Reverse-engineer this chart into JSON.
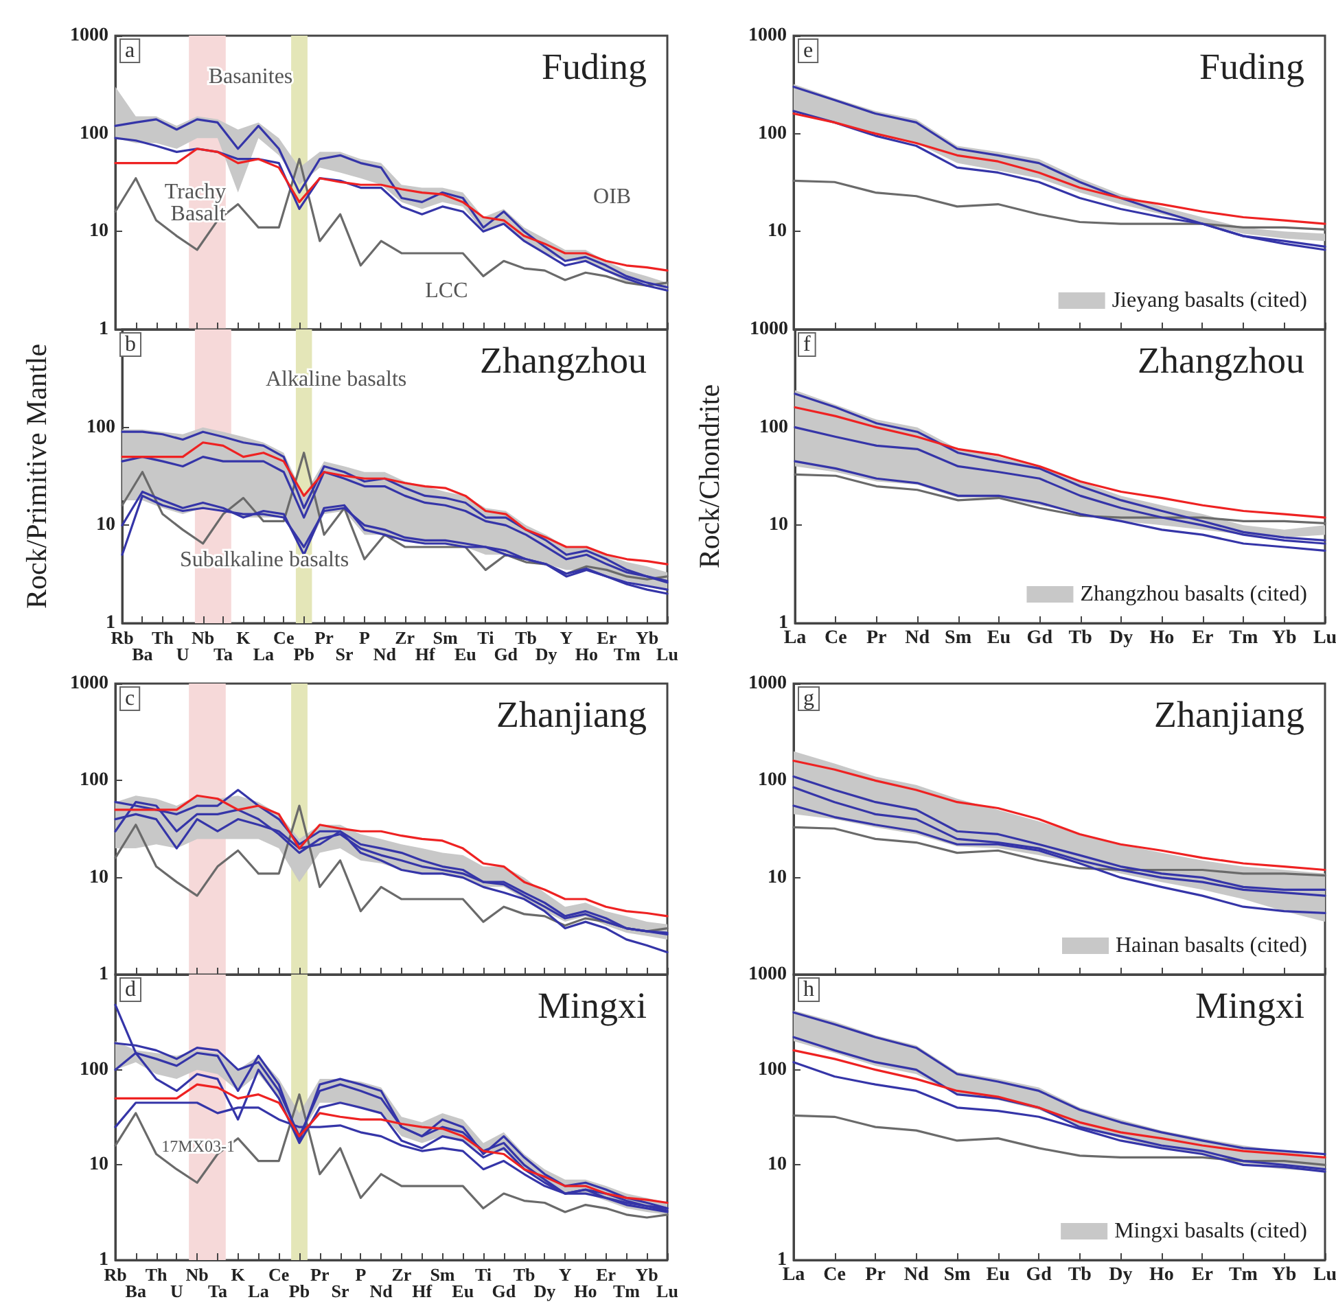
{
  "chart_data": [
    {
      "type": "line",
      "title": "Fuding",
      "annotations": [
        "a",
        "Basanites",
        "Trachy Basalt",
        "OIB",
        "LCC"
      ],
      "categories": [
        "Rb",
        "Ba",
        "Th",
        "U",
        "Nb",
        "Ta",
        "K",
        "La",
        "Ce",
        "Pb",
        "Pr",
        "Sr",
        "P",
        "Nd",
        "Zr",
        "Hf",
        "Sm",
        "Eu",
        "Ti",
        "Gd",
        "Tb",
        "Dy",
        "Y",
        "Ho",
        "Er",
        "Tm",
        "Yb",
        "Lu"
      ],
      "log": true,
      "ylim": [
        1,
        1000
      ],
      "yticks": [
        1,
        10,
        100,
        1000
      ],
      "tick_labels": "y",
      "marker": "none",
      "bands": [
        {
          "axis": "x",
          "from": "Nb",
          "to": "Ta",
          "color": "#f6d9d9"
        },
        {
          "axis": "x",
          "from": "Pb",
          "to": "Pb",
          "color": "#e4e6b8"
        }
      ],
      "series": [
        {
          "color": "#c8c8c8",
          "values": [
            null,
            null,
            null,
            null,
            null,
            null,
            null,
            null,
            null,
            null,
            null,
            null,
            null,
            null,
            null,
            null,
            null,
            null,
            null,
            null,
            null,
            null,
            null,
            null,
            null,
            null,
            null,
            null
          ],
          "lower": [
            90,
            80,
            80,
            70,
            90,
            90,
            25,
            90,
            60,
            30,
            45,
            40,
            35,
            30,
            20,
            17,
            20,
            18,
            10,
            12,
            8,
            6,
            5,
            5,
            4,
            3,
            3,
            2.5
          ],
          "upper": [
            300,
            150,
            150,
            120,
            150,
            140,
            110,
            130,
            90,
            45,
            65,
            65,
            55,
            50,
            30,
            28,
            28,
            25,
            14,
            17,
            11,
            8.5,
            6.5,
            6.5,
            5,
            4,
            3.5,
            3
          ]
        },
        {
          "color": "#6a6a6a",
          "values": [
            16,
            35,
            13,
            9,
            6.5,
            13,
            19,
            11,
            11,
            55,
            8,
            15,
            4.5,
            8,
            6,
            6,
            6,
            6,
            3.5,
            5,
            4.2,
            4,
            3.2,
            3.8,
            3.5,
            3,
            2.8,
            3
          ]
        },
        {
          "color": "#3535a8",
          "values": [
            120,
            130,
            140,
            110,
            140,
            130,
            70,
            120,
            70,
            25,
            55,
            60,
            50,
            45,
            22,
            20,
            25,
            22,
            11,
            16,
            10,
            7,
            5,
            5.5,
            4.5,
            3.5,
            3,
            2.7
          ]
        },
        {
          "color": "#3535a8",
          "values": [
            90,
            85,
            75,
            65,
            70,
            65,
            55,
            55,
            50,
            17,
            35,
            33,
            28,
            28,
            18,
            15,
            18,
            16,
            10,
            12,
            8,
            6,
            4.5,
            5,
            4,
            3.3,
            2.8,
            2.5
          ]
        },
        {
          "color": "#ee2222",
          "values": [
            50,
            50,
            50,
            50,
            70,
            65,
            50,
            55,
            45,
            20,
            35,
            32,
            30,
            30,
            27,
            25,
            24,
            20,
            14,
            13,
            9,
            7.5,
            6,
            6,
            5,
            4.5,
            4.3,
            4
          ]
        }
      ]
    },
    {
      "type": "line",
      "title": "Zhangzhou",
      "ylabel": "Rock/Primitive Mantle",
      "annotations": [
        "b",
        "Alkaline basalts",
        "Subalkaline basalts"
      ],
      "categories": [
        "Rb",
        "Ba",
        "Th",
        "U",
        "Nb",
        "Ta",
        "K",
        "La",
        "Ce",
        "Pb",
        "Pr",
        "Sr",
        "P",
        "Nd",
        "Zr",
        "Hf",
        "Sm",
        "Eu",
        "Ti",
        "Gd",
        "Tb",
        "Dy",
        "Y",
        "Ho",
        "Er",
        "Tm",
        "Yb",
        "Lu"
      ],
      "log": true,
      "ylim": [
        1,
        1000
      ],
      "yticks": [
        1,
        10,
        100
      ],
      "marker": "none",
      "bands": [
        {
          "axis": "x",
          "from": "Nb",
          "to": "Ta",
          "color": "#f6d9d9"
        },
        {
          "axis": "x",
          "from": "Pb",
          "to": "Pb",
          "color": "#e4e6b8"
        }
      ],
      "series": [
        {
          "color": "#c8c8c8",
          "values": [
            null,
            null,
            null,
            null,
            null,
            null,
            null,
            null,
            null,
            null,
            null,
            null,
            null,
            null,
            null,
            null,
            null,
            null,
            null,
            null,
            null,
            null,
            null,
            null,
            null,
            null,
            null,
            null
          ],
          "lower": [
            18,
            18,
            15,
            13,
            15,
            14,
            12,
            12,
            12,
            5,
            13,
            14,
            8,
            8,
            7,
            6.5,
            6.5,
            6,
            5,
            5,
            4.5,
            4,
            3.5,
            3.5,
            3,
            2.7,
            2.4,
            2.2
          ],
          "upper": [
            95,
            95,
            90,
            85,
            100,
            90,
            80,
            70,
            55,
            20,
            45,
            40,
            35,
            35,
            28,
            25,
            22,
            20,
            15,
            14,
            10,
            8,
            6,
            6,
            5,
            4.2,
            3.8,
            3.3
          ]
        },
        {
          "color": "#6a6a6a",
          "values": [
            16,
            35,
            13,
            9,
            6.5,
            13,
            19,
            11,
            11,
            55,
            8,
            15,
            4.5,
            8,
            6,
            6,
            6,
            6,
            3.5,
            5,
            4.2,
            4,
            3.2,
            3.8,
            3.5,
            3,
            2.8,
            3
          ]
        },
        {
          "color": "#3535a8",
          "values": [
            90,
            90,
            85,
            75,
            90,
            80,
            70,
            65,
            50,
            15,
            40,
            35,
            28,
            30,
            24,
            20,
            19,
            17,
            12,
            12,
            9,
            7,
            5,
            5.5,
            4.5,
            3.5,
            3,
            2.7
          ]
        },
        {
          "color": "#3535a8",
          "values": [
            45,
            50,
            45,
            40,
            50,
            45,
            45,
            45,
            35,
            12,
            35,
            30,
            25,
            25,
            20,
            17,
            16,
            14,
            11,
            10,
            8,
            6,
            4.5,
            5,
            4,
            3.3,
            3,
            2.6
          ]
        },
        {
          "color": "#3535a8",
          "values": [
            10,
            22,
            18,
            15,
            17,
            15,
            12,
            14,
            13,
            5,
            15,
            16,
            9,
            8,
            7,
            6.5,
            6.5,
            6,
            6,
            5.5,
            4.5,
            4,
            3,
            3.5,
            3,
            2.5,
            2.2,
            2
          ]
        },
        {
          "color": "#3535a8",
          "values": [
            5,
            20,
            16,
            14,
            15,
            14,
            13,
            13,
            12,
            6,
            14,
            15,
            10,
            9,
            7.5,
            7,
            7,
            6.5,
            6,
            5,
            4.5,
            4,
            3.2,
            3.6,
            3,
            2.6,
            2.4,
            2.2
          ]
        },
        {
          "color": "#ee2222",
          "values": [
            50,
            50,
            50,
            50,
            70,
            65,
            50,
            55,
            45,
            20,
            35,
            32,
            30,
            30,
            27,
            25,
            24,
            20,
            14,
            13,
            9,
            7.5,
            6,
            6,
            5,
            4.5,
            4.3,
            4
          ]
        }
      ]
    },
    {
      "type": "line",
      "title": "Zhanjiang",
      "annotations": [
        "c"
      ],
      "categories": [
        "Rb",
        "Ba",
        "Th",
        "U",
        "Nb",
        "Ta",
        "K",
        "La",
        "Ce",
        "Pb",
        "Pr",
        "Sr",
        "P",
        "Nd",
        "Zr",
        "Hf",
        "Sm",
        "Eu",
        "Ti",
        "Gd",
        "Tb",
        "Dy",
        "Y",
        "Ho",
        "Er",
        "Tm",
        "Yb",
        "Lu"
      ],
      "log": true,
      "ylim": [
        1,
        1000
      ],
      "yticks": [
        1,
        10,
        100,
        1000
      ],
      "tick_labels": "y",
      "marker": "none",
      "bands": [
        {
          "axis": "x",
          "from": "Nb",
          "to": "Ta",
          "color": "#f6d9d9"
        },
        {
          "axis": "x",
          "from": "Pb",
          "to": "Pb",
          "color": "#e4e6b8"
        }
      ],
      "series": [
        {
          "color": "#c8c8c8",
          "values": [
            null,
            null,
            null,
            null,
            null,
            null,
            null,
            null,
            null,
            null,
            null,
            null,
            null,
            null,
            null,
            null,
            null,
            null,
            null,
            null,
            null,
            null,
            null,
            null,
            null,
            null,
            null,
            null
          ],
          "lower": [
            20,
            20,
            22,
            20,
            25,
            25,
            25,
            25,
            20,
            9,
            18,
            20,
            15,
            14,
            12,
            11,
            11,
            10,
            8,
            8,
            6,
            4.5,
            3.5,
            4,
            3.2,
            2.7,
            2.5,
            2.3
          ],
          "upper": [
            60,
            70,
            65,
            55,
            70,
            65,
            70,
            60,
            45,
            25,
            35,
            35,
            28,
            25,
            22,
            20,
            18,
            17,
            13,
            13,
            10,
            7,
            5,
            5.5,
            4.5,
            4,
            3.5,
            3.3
          ]
        },
        {
          "color": "#6a6a6a",
          "values": [
            16,
            35,
            13,
            9,
            6.5,
            13,
            19,
            11,
            11,
            55,
            8,
            15,
            4.5,
            8,
            6,
            6,
            6,
            6,
            3.5,
            5,
            4.2,
            4,
            3.2,
            3.8,
            3.5,
            3,
            2.8,
            3
          ]
        },
        {
          "color": "#3535a8",
          "values": [
            60,
            55,
            50,
            45,
            55,
            55,
            80,
            55,
            40,
            22,
            30,
            30,
            22,
            20,
            18,
            15,
            13,
            12,
            9,
            9,
            7,
            5.5,
            4,
            4.5,
            3.8,
            3,
            2.8,
            2.7
          ]
        },
        {
          "color": "#3535a8",
          "values": [
            40,
            45,
            40,
            20,
            40,
            30,
            40,
            35,
            30,
            20,
            22,
            30,
            18,
            15,
            12,
            11,
            11,
            10,
            8,
            7,
            6,
            4.5,
            3,
            3.5,
            3,
            2.3,
            2,
            1.7
          ]
        },
        {
          "color": "#3535a8",
          "values": [
            30,
            60,
            55,
            30,
            45,
            45,
            50,
            40,
            28,
            18,
            25,
            28,
            20,
            17,
            15,
            13,
            12,
            11,
            9,
            8.5,
            6.5,
            5,
            3.8,
            4.2,
            3.5,
            3,
            2.8,
            2.6
          ]
        },
        {
          "color": "#ee2222",
          "values": [
            50,
            50,
            50,
            50,
            70,
            65,
            50,
            55,
            45,
            20,
            35,
            32,
            30,
            30,
            27,
            25,
            24,
            20,
            14,
            13,
            9,
            7.5,
            6,
            6,
            5,
            4.5,
            4.3,
            4
          ]
        }
      ]
    },
    {
      "type": "line",
      "title": "Mingxi",
      "annotations": [
        "d",
        "17MX03-1"
      ],
      "categories": [
        "Rb",
        "Ba",
        "Th",
        "U",
        "Nb",
        "Ta",
        "K",
        "La",
        "Ce",
        "Pb",
        "Pr",
        "Sr",
        "P",
        "Nd",
        "Zr",
        "Hf",
        "Sm",
        "Eu",
        "Ti",
        "Gd",
        "Tb",
        "Dy",
        "Y",
        "Ho",
        "Er",
        "Tm",
        "Yb",
        "Lu"
      ],
      "log": true,
      "ylim": [
        1,
        1000
      ],
      "yticks": [
        1,
        10,
        100
      ],
      "marker": "none",
      "bands": [
        {
          "axis": "x",
          "from": "Nb",
          "to": "Ta",
          "color": "#f6d9d9"
        },
        {
          "axis": "x",
          "from": "Pb",
          "to": "Pb",
          "color": "#e4e6b8"
        }
      ],
      "series": [
        {
          "color": "#c8c8c8",
          "values": [
            null,
            null,
            null,
            null,
            null,
            null,
            null,
            null,
            null,
            null,
            null,
            null,
            null,
            null,
            null,
            null,
            null,
            null,
            null,
            null,
            null,
            null,
            null,
            null,
            null,
            null,
            null,
            null
          ],
          "lower": [
            100,
            120,
            90,
            80,
            100,
            90,
            60,
            90,
            50,
            20,
            45,
            45,
            40,
            35,
            20,
            17,
            20,
            18,
            13,
            14,
            9,
            6.5,
            5,
            5,
            4.2,
            3.5,
            3.2,
            3
          ],
          "upper": [
            200,
            160,
            150,
            140,
            160,
            150,
            100,
            140,
            80,
            35,
            80,
            80,
            75,
            65,
            32,
            28,
            35,
            30,
            17,
            22,
            13,
            9,
            7,
            7,
            6,
            5,
            4.5,
            4
          ]
        },
        {
          "color": "#6a6a6a",
          "values": [
            16,
            35,
            13,
            9,
            6.5,
            13,
            19,
            11,
            11,
            55,
            8,
            15,
            4.5,
            8,
            6,
            6,
            6,
            6,
            3.5,
            5,
            4.2,
            4,
            3.2,
            3.8,
            3.5,
            3,
            2.8,
            3
          ]
        },
        {
          "color": "#3535a8",
          "values": [
            480,
            150,
            130,
            110,
            150,
            140,
            60,
            140,
            70,
            18,
            70,
            80,
            70,
            60,
            25,
            20,
            30,
            25,
            13,
            20,
            12,
            8,
            6,
            6.5,
            5.5,
            4.5,
            4,
            3.5
          ]
        },
        {
          "color": "#3535a8",
          "values": [
            190,
            180,
            160,
            130,
            170,
            160,
            100,
            120,
            60,
            20,
            60,
            70,
            60,
            50,
            25,
            20,
            25,
            22,
            14,
            17,
            10,
            7,
            5,
            5.5,
            5,
            4.2,
            3.7,
            3.3
          ]
        },
        {
          "color": "#3535a8",
          "values": [
            100,
            150,
            80,
            60,
            90,
            80,
            30,
            100,
            50,
            17,
            40,
            45,
            40,
            35,
            18,
            15,
            20,
            18,
            12,
            15,
            9,
            6.5,
            5,
            5.5,
            4.5,
            3.8,
            3.5,
            3.2
          ]
        },
        {
          "color": "#3535a8",
          "values": [
            25,
            45,
            45,
            45,
            45,
            35,
            40,
            40,
            30,
            25,
            25,
            26,
            22,
            20,
            16,
            14,
            15,
            14,
            9,
            11,
            8,
            6,
            5,
            5,
            4.5,
            4,
            3.7,
            3.5
          ]
        },
        {
          "color": "#ee2222",
          "values": [
            50,
            50,
            50,
            50,
            70,
            65,
            50,
            55,
            45,
            20,
            35,
            32,
            30,
            30,
            27,
            25,
            24,
            20,
            14,
            13,
            9,
            7.5,
            6,
            6,
            5,
            4.5,
            4.3,
            4
          ]
        }
      ]
    },
    {
      "type": "line",
      "title": "Fuding",
      "annotations": [
        "e"
      ],
      "categories": [
        "La",
        "Ce",
        "Pr",
        "Nd",
        "Sm",
        "Eu",
        "Gd",
        "Tb",
        "Dy",
        "Ho",
        "Er",
        "Tm",
        "Yb",
        "Lu"
      ],
      "log": true,
      "ylim": [
        1,
        1000
      ],
      "yticks": [
        10,
        100,
        1000
      ],
      "tick_labels": "y",
      "marker": "none",
      "legend": "bottom right",
      "series": [
        {
          "name": "Jieyang basalts (cited)",
          "color": "#c8c8c8",
          "values": [
            null,
            null,
            null,
            null,
            null,
            null,
            null,
            null,
            null,
            null,
            null,
            null,
            null,
            null
          ],
          "lower": [
            170,
            130,
            100,
            80,
            50,
            42,
            35,
            25,
            19,
            15,
            12,
            9.5,
            8.5,
            8
          ],
          "upper": [
            320,
            230,
            170,
            140,
            75,
            65,
            55,
            35,
            24,
            18,
            14,
            11,
            10,
            9.5
          ]
        },
        {
          "color": "#6a6a6a",
          "values": [
            33,
            32,
            25,
            23,
            18,
            19,
            15,
            12.5,
            12,
            12,
            12,
            11,
            11,
            10.5
          ]
        },
        {
          "color": "#3535a8",
          "values": [
            300,
            220,
            160,
            130,
            70,
            60,
            50,
            32,
            22,
            16,
            12,
            9,
            8,
            7
          ]
        },
        {
          "color": "#3535a8",
          "values": [
            170,
            130,
            95,
            75,
            45,
            40,
            32,
            22,
            17,
            14,
            12,
            9,
            7.5,
            6.5
          ]
        },
        {
          "color": "#ee2222",
          "values": [
            160,
            130,
            100,
            80,
            60,
            52,
            40,
            28,
            22,
            19,
            16,
            14,
            13,
            12
          ]
        }
      ]
    },
    {
      "type": "line",
      "title": "Zhangzhou",
      "ylabel": "Rock/Chondrite",
      "annotations": [
        "f"
      ],
      "categories": [
        "La",
        "Ce",
        "Pr",
        "Nd",
        "Sm",
        "Eu",
        "Gd",
        "Tb",
        "Dy",
        "Ho",
        "Er",
        "Tm",
        "Yb",
        "Lu"
      ],
      "log": true,
      "ylim": [
        1,
        1000
      ],
      "yticks": [
        1,
        10,
        100,
        1000
      ],
      "marker": "none",
      "legend": "bottom right",
      "series": [
        {
          "name": "Zhangzhou basalts (cited)",
          "color": "#c8c8c8",
          "values": [
            null,
            null,
            null,
            null,
            null,
            null,
            null,
            null,
            null,
            null,
            null,
            null,
            null,
            null
          ],
          "lower": [
            40,
            35,
            28,
            26,
            19,
            19,
            16,
            13,
            11,
            10,
            9,
            8,
            7.5,
            8
          ],
          "upper": [
            240,
            170,
            120,
            100,
            60,
            50,
            40,
            28,
            20,
            16,
            13,
            10,
            9,
            10
          ]
        },
        {
          "color": "#6a6a6a",
          "values": [
            33,
            32,
            25,
            23,
            18,
            19,
            15,
            12.5,
            12,
            12,
            12,
            11,
            11,
            10.5
          ]
        },
        {
          "color": "#3535a8",
          "values": [
            220,
            160,
            110,
            90,
            55,
            45,
            38,
            25,
            18,
            14,
            11,
            8.5,
            7.5,
            7
          ]
        },
        {
          "color": "#3535a8",
          "values": [
            100,
            80,
            65,
            60,
            40,
            35,
            30,
            20,
            15,
            12,
            10,
            8,
            7,
            6.5
          ]
        },
        {
          "color": "#3535a8",
          "values": [
            45,
            38,
            30,
            27,
            20,
            20,
            17,
            13,
            11,
            9,
            8,
            6.5,
            6,
            5.5
          ]
        },
        {
          "color": "#ee2222",
          "values": [
            160,
            130,
            100,
            80,
            60,
            52,
            40,
            28,
            22,
            19,
            16,
            14,
            13,
            12
          ]
        }
      ]
    },
    {
      "type": "line",
      "title": "Zhanjiang",
      "annotations": [
        "g"
      ],
      "categories": [
        "La",
        "Ce",
        "Pr",
        "Nd",
        "Sm",
        "Eu",
        "Gd",
        "Tb",
        "Dy",
        "Ho",
        "Er",
        "Tm",
        "Yb",
        "Lu"
      ],
      "log": true,
      "ylim": [
        1,
        1000
      ],
      "yticks": [
        10,
        100,
        1000
      ],
      "tick_labels": "y",
      "marker": "none",
      "legend": "bottom right",
      "series": [
        {
          "name": "Hainan basalts (cited)",
          "color": "#c8c8c8",
          "values": [
            null,
            null,
            null,
            null,
            null,
            null,
            null,
            null,
            null,
            null,
            null,
            null,
            null,
            null
          ],
          "lower": [
            45,
            40,
            33,
            28,
            21,
            20,
            17,
            14,
            11,
            9,
            7.5,
            6,
            4.5,
            3.5
          ],
          "upper": [
            200,
            150,
            110,
            90,
            65,
            50,
            38,
            28,
            22,
            18,
            15,
            13,
            12,
            11
          ]
        },
        {
          "color": "#6a6a6a",
          "values": [
            33,
            32,
            25,
            23,
            18,
            19,
            15,
            12.5,
            12,
            12,
            12,
            11,
            11,
            10.5
          ]
        },
        {
          "color": "#3535a8",
          "values": [
            110,
            80,
            60,
            50,
            30,
            28,
            22,
            17,
            13,
            11,
            10,
            8,
            7.5,
            7.5
          ]
        },
        {
          "color": "#3535a8",
          "values": [
            85,
            60,
            45,
            40,
            25,
            23,
            20,
            15,
            12,
            10,
            9,
            7.5,
            7,
            6.5
          ]
        },
        {
          "color": "#3535a8",
          "values": [
            55,
            42,
            35,
            30,
            22,
            22,
            19,
            14,
            10,
            8,
            6.5,
            5,
            4.5,
            4.3
          ]
        },
        {
          "color": "#ee2222",
          "values": [
            160,
            130,
            100,
            80,
            60,
            52,
            40,
            28,
            22,
            19,
            16,
            14,
            13,
            12
          ]
        }
      ]
    },
    {
      "type": "line",
      "title": "Mingxi",
      "annotations": [
        "h"
      ],
      "categories": [
        "La",
        "Ce",
        "Pr",
        "Nd",
        "Sm",
        "Eu",
        "Gd",
        "Tb",
        "Dy",
        "Ho",
        "Er",
        "Tm",
        "Yb",
        "Lu"
      ],
      "log": true,
      "ylim": [
        1,
        1000
      ],
      "yticks": [
        1,
        10,
        100,
        1000
      ],
      "marker": "none",
      "legend": "bottom right",
      "series": [
        {
          "name": "Mingxi basalts (cited)",
          "color": "#c8c8c8",
          "values": [
            null,
            null,
            null,
            null,
            null,
            null,
            null,
            null,
            null,
            null,
            null,
            null,
            null,
            null
          ],
          "lower": [
            200,
            150,
            110,
            90,
            55,
            48,
            38,
            25,
            19,
            15,
            13,
            10,
            9,
            8.5
          ],
          "upper": [
            420,
            320,
            230,
            180,
            95,
            80,
            65,
            40,
            30,
            23,
            19,
            16,
            14,
            12
          ]
        },
        {
          "color": "#6a6a6a",
          "values": [
            33,
            32,
            25,
            23,
            18,
            19,
            15,
            12.5,
            12,
            12,
            12,
            11,
            11,
            10
          ]
        },
        {
          "color": "#3535a8",
          "values": [
            400,
            300,
            220,
            170,
            90,
            75,
            60,
            38,
            28,
            22,
            18,
            15,
            14,
            13
          ]
        },
        {
          "color": "#3535a8",
          "values": [
            220,
            160,
            120,
            100,
            55,
            50,
            40,
            25,
            20,
            16,
            14,
            11,
            10,
            9
          ]
        },
        {
          "color": "#3535a8",
          "values": [
            120,
            85,
            70,
            60,
            40,
            37,
            32,
            24,
            18,
            15,
            13,
            10,
            9.5,
            8.5
          ]
        },
        {
          "color": "#ee2222",
          "values": [
            160,
            130,
            100,
            80,
            60,
            52,
            40,
            28,
            22,
            19,
            16,
            14,
            13,
            12
          ]
        }
      ]
    }
  ]
}
